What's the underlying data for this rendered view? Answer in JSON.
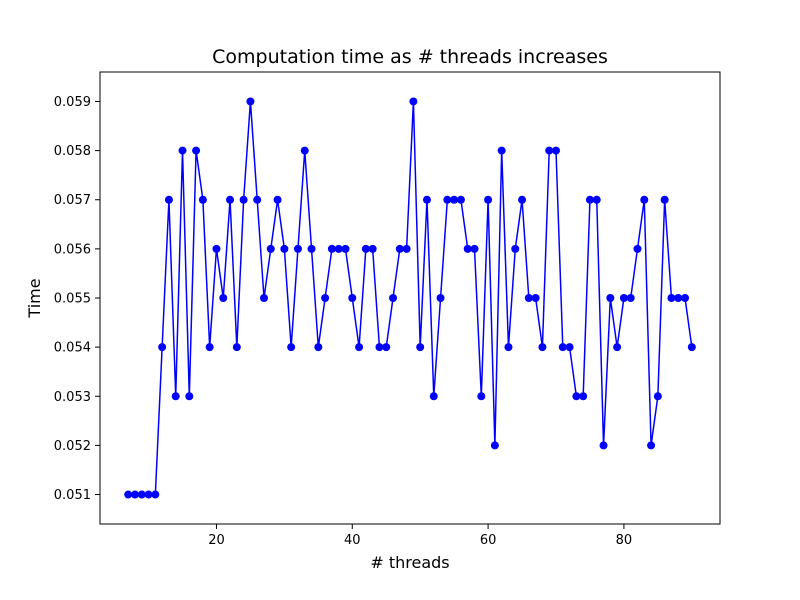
{
  "chart_data": {
    "type": "line",
    "title": "Computation time as # threads increases",
    "xlabel": "# threads",
    "ylabel": "Time",
    "xlim": [
      2.85,
      94.15
    ],
    "ylim": [
      0.0504,
      0.0596
    ],
    "xticks": [
      20,
      40,
      60,
      80
    ],
    "yticks": [
      0.051,
      0.052,
      0.053,
      0.054,
      0.055,
      0.056,
      0.057,
      0.058,
      0.059
    ],
    "grid": false,
    "line_color": "#0000ff",
    "marker": "circle",
    "series": [
      {
        "x": [
          7,
          8,
          9,
          10,
          11,
          12,
          13,
          14,
          15,
          16,
          17,
          18,
          19,
          20,
          21,
          22,
          23,
          24,
          25,
          26,
          27,
          28,
          29,
          30,
          31,
          32,
          33,
          34,
          35,
          36,
          37,
          38,
          39,
          40,
          41,
          42,
          43,
          44,
          45,
          46,
          47,
          48,
          49,
          50,
          51,
          52,
          53,
          54,
          55,
          56,
          57,
          58,
          59,
          60,
          61,
          62,
          63,
          64,
          65,
          66,
          67,
          68,
          69,
          70,
          71,
          72,
          73,
          74,
          75,
          76,
          77,
          78,
          79,
          80,
          81,
          82,
          83,
          84,
          85,
          86,
          87,
          88,
          89,
          90
        ],
        "values": [
          0.051,
          0.051,
          0.051,
          0.051,
          0.051,
          0.054,
          0.057,
          0.053,
          0.058,
          0.053,
          0.058,
          0.057,
          0.054,
          0.056,
          0.055,
          0.057,
          0.054,
          0.057,
          0.059,
          0.057,
          0.055,
          0.056,
          0.057,
          0.056,
          0.054,
          0.056,
          0.058,
          0.056,
          0.054,
          0.055,
          0.056,
          0.056,
          0.056,
          0.055,
          0.054,
          0.056,
          0.056,
          0.054,
          0.054,
          0.055,
          0.056,
          0.056,
          0.059,
          0.054,
          0.057,
          0.053,
          0.055,
          0.057,
          0.057,
          0.057,
          0.056,
          0.056,
          0.053,
          0.057,
          0.052,
          0.058,
          0.054,
          0.056,
          0.057,
          0.055,
          0.055,
          0.054,
          0.058,
          0.058,
          0.054,
          0.054,
          0.053,
          0.053,
          0.057,
          0.057,
          0.052,
          0.055,
          0.054,
          0.055,
          0.055,
          0.056,
          0.057,
          0.052,
          0.053,
          0.057,
          0.055,
          0.055,
          0.055,
          0.054
        ]
      }
    ]
  }
}
